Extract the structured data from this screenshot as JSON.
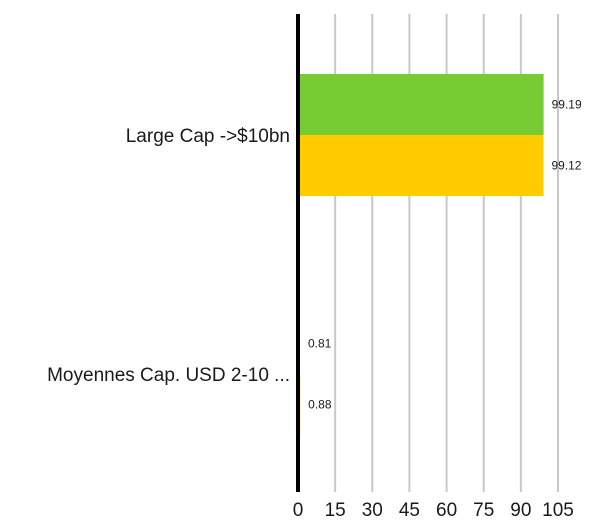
{
  "chart_data": {
    "type": "bar",
    "orientation": "horizontal",
    "categories": [
      "Large Cap ->$10bn",
      "Moyennes Cap. USD 2-10 ..."
    ],
    "series": [
      {
        "values": [
          99.19,
          0.81
        ],
        "color": "#77cc33"
      },
      {
        "values": [
          99.12,
          0.88
        ],
        "color": "#ffcc00"
      }
    ],
    "data_labels": [
      [
        "99.19",
        "0.81"
      ],
      [
        "99.12",
        "0.88"
      ]
    ],
    "xticks": [
      0,
      15,
      30,
      45,
      60,
      75,
      90,
      105
    ],
    "xtick_labels": [
      "0",
      "15",
      "30",
      "45",
      "60",
      "75",
      "90",
      "105"
    ],
    "xlim": [
      0,
      105
    ],
    "grid": true,
    "legend": "none"
  }
}
